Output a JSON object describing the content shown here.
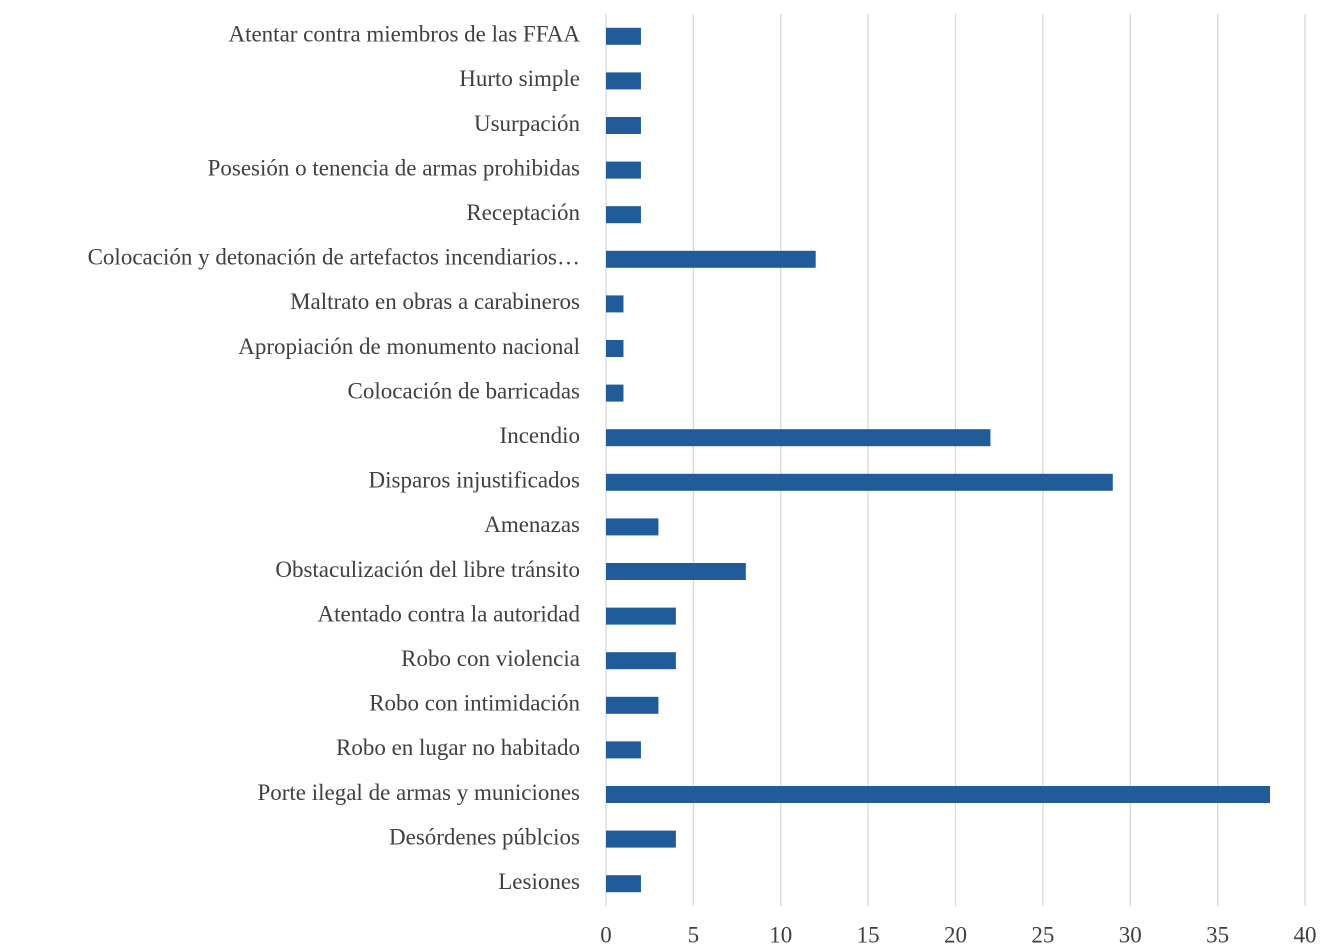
{
  "chart_data": {
    "type": "bar",
    "orientation": "horizontal",
    "categories": [
      "Atentar contra miembros de las FFAA",
      "Hurto simple",
      "Usurpación",
      "Posesión o tenencia de armas prohibidas",
      "Receptación",
      "Colocación y detonación de artefactos incendiarios…",
      "Maltrato en obras a carabineros",
      "Apropiación de monumento nacional",
      "Colocación de barricadas",
      "Incendio",
      "Disparos injustificados",
      "Amenazas",
      "Obstaculización del libre tránsito",
      "Atentado contra la autoridad",
      "Robo con violencia",
      "Robo con intimidación",
      "Robo en lugar no habitado",
      "Porte ilegal de armas y municiones",
      "Desórdenes públcios",
      "Lesiones"
    ],
    "values": [
      2,
      2,
      2,
      2,
      2,
      12,
      1,
      1,
      1,
      22,
      29,
      3,
      8,
      4,
      4,
      3,
      2,
      38,
      4,
      2
    ],
    "color": "#1f5c99",
    "xlim": [
      0,
      40
    ],
    "xticks": [
      0,
      5,
      10,
      15,
      20,
      25,
      30,
      35,
      40
    ],
    "grid": true
  }
}
